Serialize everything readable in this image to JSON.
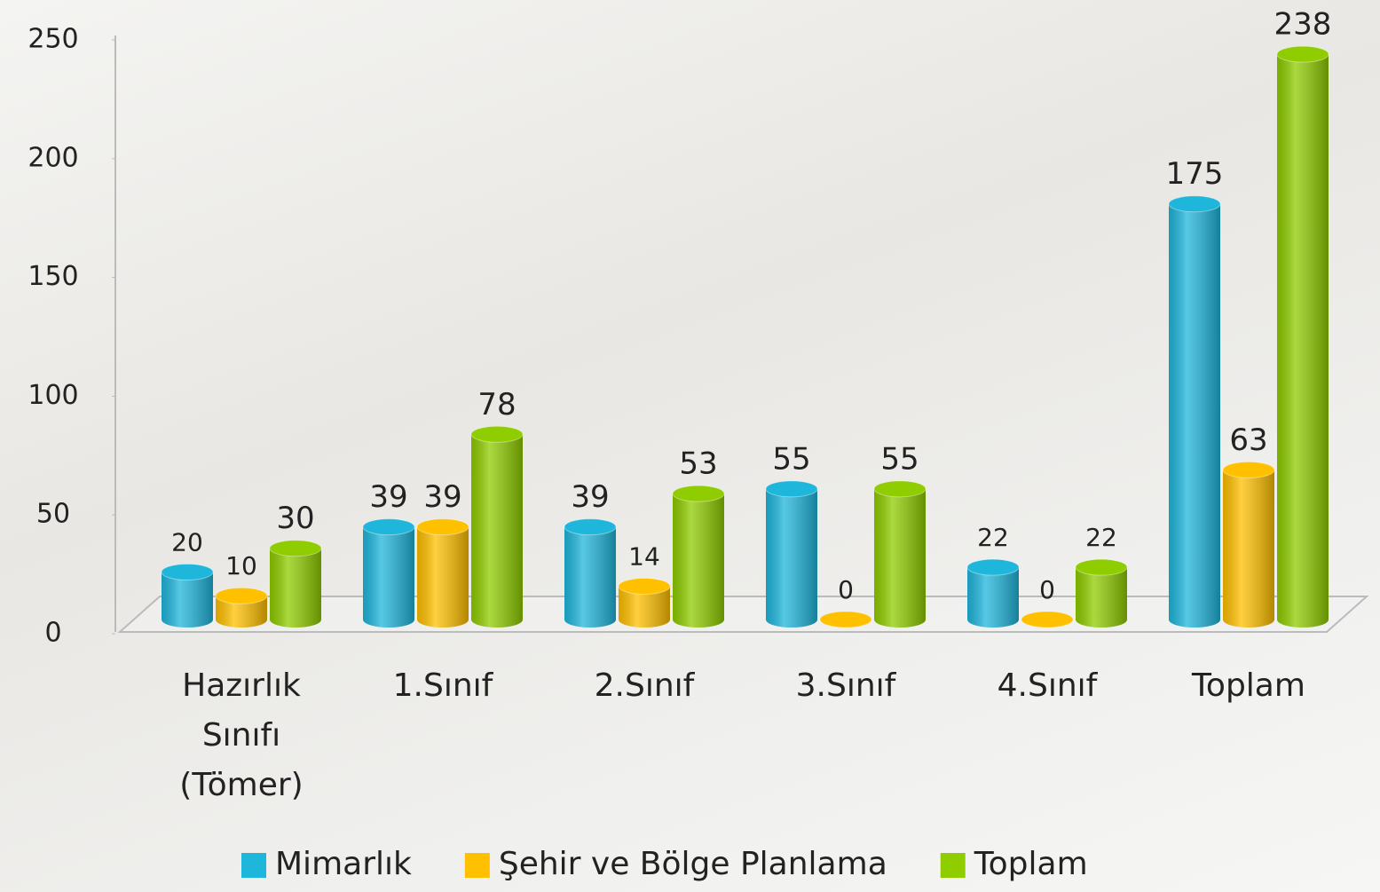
{
  "chart_data": {
    "type": "bar",
    "categories": [
      "Hazırlık Sınıfı (Tömer)",
      "1.Sınıf",
      "2.Sınıf",
      "3.Sınıf",
      "4.Sınıf",
      "Toplam"
    ],
    "series": [
      {
        "name": "Mimarlık",
        "color": "#1fb6dc",
        "values": [
          20,
          39,
          39,
          55,
          22,
          175
        ]
      },
      {
        "name": "Şehir ve Bölge Planlama",
        "color": "#ffc000",
        "values": [
          10,
          39,
          14,
          0,
          0,
          63
        ]
      },
      {
        "name": "Toplam",
        "color": "#8fcc00",
        "values": [
          30,
          78,
          53,
          55,
          22,
          238
        ]
      }
    ],
    "ylim": [
      0,
      250
    ],
    "yticks": [
      0,
      50,
      100,
      150,
      200,
      250
    ],
    "grid": false,
    "legend": "bottom"
  }
}
